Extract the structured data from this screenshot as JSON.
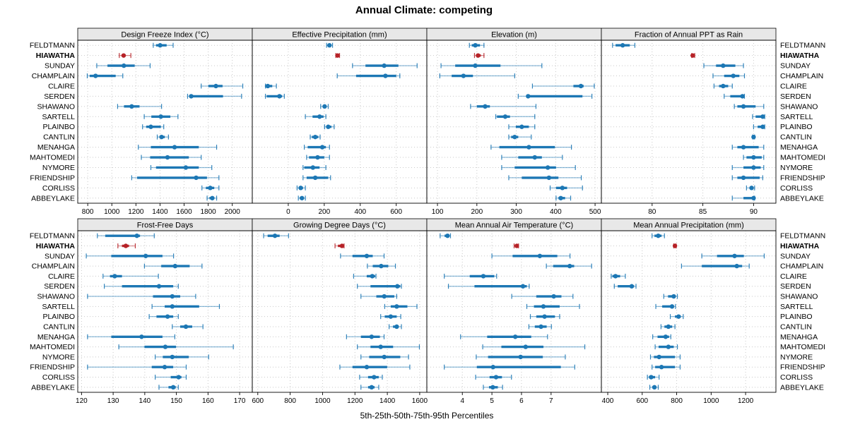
{
  "title": "Annual Climate: competing",
  "xlabel": "5th-25th-50th-75th-95th Percentiles",
  "sites": [
    "FELDTMANN",
    "HIAWATHA",
    "SUNDAY",
    "CHAMPLAIN",
    "CLAIRE",
    "SERDEN",
    "SHAWANO",
    "SARTELL",
    "PLAINBO",
    "CANTLIN",
    "MENAHGA",
    "MAHTOMEDI",
    "NYMORE",
    "FRIENDSHIP",
    "CORLISS",
    "ABBEYLAKE"
  ],
  "highlight_site": "HIAWATHA",
  "colors": {
    "series": "#1c77b4",
    "highlight": "#b62227",
    "grid": "#c9c9c9",
    "strip_bg": "#e8e8e8",
    "border": "#000000",
    "text": "#000000"
  },
  "chart_data": {
    "type": "dotplot",
    "subtype": "percentile intervals (5th-25th-50th-75th-95th) by site, lattice of 8 panels",
    "percentile_labels": [
      "5th",
      "25th",
      "50th",
      "75th",
      "95th"
    ],
    "legend_position": "none",
    "grid": "dotted",
    "panels": [
      {
        "title": "Design Freeze Index (°C)",
        "row": 0,
        "col": 0,
        "xlim": [
          717,
          2166
        ],
        "ticks": [
          800,
          1000,
          1200,
          1400,
          1600,
          1800,
          2000
        ],
        "values": [
          [
            1344,
            1367,
            1401,
            1455,
            1509
          ],
          [
            1062,
            1082,
            1098,
            1110,
            1158
          ],
          [
            875,
            964,
            1100,
            1190,
            1318
          ],
          [
            796,
            816,
            865,
            1032,
            1091
          ],
          [
            1742,
            1801,
            1864,
            1919,
            2087
          ],
          [
            1629,
            1643,
            1659,
            1923,
            2077
          ],
          [
            1048,
            1101,
            1165,
            1230,
            1413
          ],
          [
            1269,
            1328,
            1407,
            1486,
            1549
          ],
          [
            1255,
            1285,
            1324,
            1407,
            1431
          ],
          [
            1377,
            1395,
            1413,
            1440,
            1470
          ],
          [
            1220,
            1324,
            1521,
            1722,
            1870
          ],
          [
            1245,
            1318,
            1462,
            1639,
            1742
          ],
          [
            1324,
            1367,
            1614,
            1722,
            1830
          ],
          [
            1165,
            1210,
            1700,
            1790,
            1889
          ],
          [
            1748,
            1781,
            1817,
            1850,
            1889
          ],
          [
            1791,
            1810,
            1834,
            1850,
            1870
          ]
        ]
      },
      {
        "title": "Effective Precipitation (mm)",
        "row": 0,
        "col": 1,
        "xlim": [
          -200,
          770
        ],
        "ticks": [
          0,
          200,
          400,
          600
        ],
        "values": [
          [
            213,
            220,
            229,
            237,
            246
          ],
          [
            264,
            269,
            274,
            280,
            285
          ],
          [
            357,
            429,
            533,
            612,
            716
          ],
          [
            272,
            377,
            540,
            600,
            620
          ],
          [
            -127,
            -124,
            -114,
            -89,
            -66
          ],
          [
            -127,
            -120,
            -49,
            -34,
            -22
          ],
          [
            180,
            192,
            202,
            212,
            222
          ],
          [
            95,
            135,
            174,
            196,
            209
          ],
          [
            202,
            212,
            222,
            240,
            255
          ],
          [
            122,
            131,
            150,
            167,
            177
          ],
          [
            89,
            108,
            189,
            209,
            229
          ],
          [
            102,
            115,
            163,
            200,
            229
          ],
          [
            82,
            89,
            137,
            174,
            209
          ],
          [
            82,
            102,
            150,
            222,
            235
          ],
          [
            49,
            58,
            69,
            82,
            95
          ],
          [
            56,
            64,
            76,
            85,
            95
          ]
        ]
      },
      {
        "title": "Elevation (m)",
        "row": 0,
        "col": 2,
        "xlim": [
          73,
          516
        ],
        "ticks": [
          100,
          200,
          300,
          400,
          500
        ],
        "values": [
          [
            181,
            187,
            196,
            208,
            218
          ],
          [
            194,
            198,
            203,
            210,
            218
          ],
          [
            109,
            145,
            196,
            260,
            365
          ],
          [
            106,
            136,
            166,
            190,
            296
          ],
          [
            341,
            445,
            464,
            471,
            498
          ],
          [
            305,
            326,
            330,
            468,
            492
          ],
          [
            184,
            200,
            221,
            233,
            350
          ],
          [
            248,
            251,
            272,
            284,
            347
          ],
          [
            281,
            299,
            314,
            332,
            347
          ],
          [
            281,
            287,
            296,
            305,
            338
          ],
          [
            236,
            257,
            332,
            398,
            440
          ],
          [
            263,
            305,
            347,
            365,
            417
          ],
          [
            263,
            296,
            380,
            401,
            450
          ],
          [
            281,
            314,
            383,
            407,
            465
          ],
          [
            386,
            401,
            417,
            429,
            468
          ],
          [
            401,
            407,
            413,
            424,
            438
          ]
        ]
      },
      {
        "title": "Fraction of Annual PPT as Rain",
        "row": 0,
        "col": 3,
        "xlim": [
          75,
          92.2
        ],
        "ticks": [
          80,
          85,
          90
        ],
        "values": [
          [
            76.1,
            76.4,
            77.1,
            77.8,
            78.3
          ],
          [
            83.9,
            84.0,
            84.0,
            84.1,
            84.2
          ],
          [
            85.1,
            86.3,
            87.0,
            88.2,
            89.0
          ],
          [
            86.0,
            87.1,
            88.0,
            88.6,
            89.1
          ],
          [
            86.1,
            86.6,
            87.0,
            87.5,
            87.9
          ],
          [
            87.1,
            87.7,
            88.9,
            89.0,
            89.1
          ],
          [
            88.1,
            88.4,
            89.0,
            90.2,
            91.0
          ],
          [
            89.9,
            90.2,
            90.9,
            91.0,
            91.1
          ],
          [
            90.0,
            90.4,
            90.9,
            91.0,
            91.1
          ],
          [
            89.9,
            89.9,
            90.0,
            90.0,
            90.1
          ],
          [
            87.9,
            88.4,
            89.0,
            90.5,
            91.0
          ],
          [
            89.0,
            89.3,
            90.0,
            90.8,
            91.0
          ],
          [
            87.9,
            89.0,
            90.0,
            90.7,
            91.0
          ],
          [
            87.9,
            88.4,
            89.0,
            90.6,
            90.9
          ],
          [
            89.3,
            89.6,
            89.8,
            90.0,
            90.1
          ],
          [
            87.9,
            89.0,
            90.0,
            90.0,
            90.1
          ]
        ]
      },
      {
        "title": "Frost-Free Days",
        "row": 1,
        "col": 0,
        "xlim": [
          118.8,
          174
        ],
        "ticks": [
          120,
          130,
          140,
          150,
          160,
          170
        ],
        "values": [
          [
            125,
            127.5,
            137.5,
            138.5,
            143
          ],
          [
            131.5,
            132.8,
            134,
            135,
            137
          ],
          [
            121.5,
            129.4,
            140.3,
            145.6,
            149.1
          ],
          [
            139.9,
            145.2,
            149.6,
            154.2,
            158.1
          ],
          [
            126.8,
            129,
            130.5,
            132.8,
            144.3
          ],
          [
            127.2,
            132.8,
            144.5,
            149,
            150.6
          ],
          [
            121.9,
            142.6,
            148.7,
            151.2,
            156.1
          ],
          [
            142.3,
            146.3,
            148.7,
            157.2,
            163.6
          ],
          [
            141.4,
            143.7,
            147.2,
            149,
            150.6
          ],
          [
            148.7,
            151.2,
            153,
            155,
            158.4
          ],
          [
            121.9,
            129.4,
            139,
            145.6,
            149.5
          ],
          [
            131.8,
            139.9,
            146.5,
            149.9,
            168
          ],
          [
            143.3,
            145.7,
            148.7,
            153.9,
            160.2
          ],
          [
            121.9,
            142.2,
            146.3,
            149,
            153.1
          ],
          [
            143.3,
            148.2,
            150.7,
            151.6,
            153.1
          ],
          [
            144.5,
            147.5,
            149,
            149.8,
            150.6
          ]
        ]
      },
      {
        "title": "Growing Degree Days (°C)",
        "row": 1,
        "col": 1,
        "xlim": [
          566,
          1644
        ],
        "ticks": [
          600,
          800,
          1000,
          1200,
          1400,
          1600
        ],
        "values": [
          [
            636,
            661,
            706,
            735,
            790
          ],
          [
            1077,
            1095,
            1120,
            1128,
            1133
          ],
          [
            1111,
            1185,
            1273,
            1310,
            1380
          ],
          [
            1277,
            1310,
            1362,
            1406,
            1450
          ],
          [
            1192,
            1273,
            1307,
            1325,
            1330
          ],
          [
            1215,
            1296,
            1462,
            1480,
            1487
          ],
          [
            1237,
            1332,
            1381,
            1443,
            1458
          ],
          [
            1384,
            1421,
            1458,
            1524,
            1583
          ],
          [
            1359,
            1384,
            1421,
            1458,
            1483
          ],
          [
            1411,
            1435,
            1458,
            1470,
            1487
          ],
          [
            1148,
            1237,
            1303,
            1354,
            1380
          ],
          [
            1215,
            1296,
            1359,
            1436,
            1598
          ],
          [
            1237,
            1288,
            1381,
            1480,
            1531
          ],
          [
            1107,
            1185,
            1273,
            1399,
            1539
          ],
          [
            1229,
            1281,
            1318,
            1347,
            1369
          ],
          [
            1237,
            1281,
            1303,
            1321,
            1347
          ]
        ]
      },
      {
        "title": "Mean Annual Air Temperature (°C)",
        "row": 1,
        "col": 2,
        "xlim": [
          2.8,
          8.7
        ],
        "ticks": [
          4,
          5,
          6,
          7
        ],
        "values": [
          [
            3.25,
            3.4,
            3.5,
            3.55,
            3.6
          ],
          [
            5.75,
            5.8,
            5.84,
            5.87,
            5.9
          ],
          [
            5.0,
            5.7,
            6.62,
            7.21,
            7.64
          ],
          [
            6.84,
            7.07,
            7.63,
            7.78,
            8.37
          ],
          [
            3.39,
            4.25,
            4.71,
            5.08,
            5.16
          ],
          [
            3.53,
            4.41,
            6.05,
            6.18,
            6.26
          ],
          [
            5.67,
            6.5,
            7.09,
            7.35,
            7.74
          ],
          [
            6.18,
            6.42,
            6.74,
            7.29,
            7.96
          ],
          [
            6.3,
            6.5,
            6.78,
            7.13,
            7.29
          ],
          [
            6.25,
            6.45,
            6.66,
            6.85,
            7.01
          ],
          [
            3.94,
            4.84,
            5.79,
            6.33,
            6.88
          ],
          [
            4.69,
            5.32,
            6.14,
            6.74,
            8.14
          ],
          [
            4.47,
            4.87,
            5.97,
            6.72,
            7.48
          ],
          [
            3.39,
            4.49,
            5.04,
            7.33,
            7.8
          ],
          [
            4.45,
            4.92,
            5.14,
            5.34,
            5.66
          ],
          [
            4.71,
            4.9,
            5.03,
            5.2,
            5.36
          ]
        ]
      },
      {
        "title": "Mean Annual Precipitation (mm)",
        "row": 1,
        "col": 3,
        "xlim": [
          363,
          1376
        ],
        "ticks": [
          400,
          600,
          800,
          1000,
          1200
        ],
        "values": [
          [
            657,
            671,
            693,
            712,
            729
          ],
          [
            783,
            787,
            790,
            793,
            797
          ],
          [
            946,
            1034,
            1136,
            1190,
            1308
          ],
          [
            828,
            946,
            1149,
            1180,
            1221
          ],
          [
            420,
            427,
            445,
            472,
            502
          ],
          [
            438,
            458,
            539,
            553,
            564
          ],
          [
            725,
            750,
            783,
            794,
            804
          ],
          [
            679,
            716,
            773,
            783,
            793
          ],
          [
            763,
            790,
            811,
            824,
            838
          ],
          [
            709,
            729,
            752,
            774,
            790
          ],
          [
            661,
            689,
            736,
            756,
            766
          ],
          [
            675,
            695,
            752,
            783,
            804
          ],
          [
            648,
            668,
            698,
            790,
            820
          ],
          [
            657,
            675,
            712,
            790,
            820
          ],
          [
            630,
            639,
            652,
            675,
            698
          ],
          [
            644,
            658,
            671,
            681,
            693
          ]
        ]
      }
    ]
  }
}
